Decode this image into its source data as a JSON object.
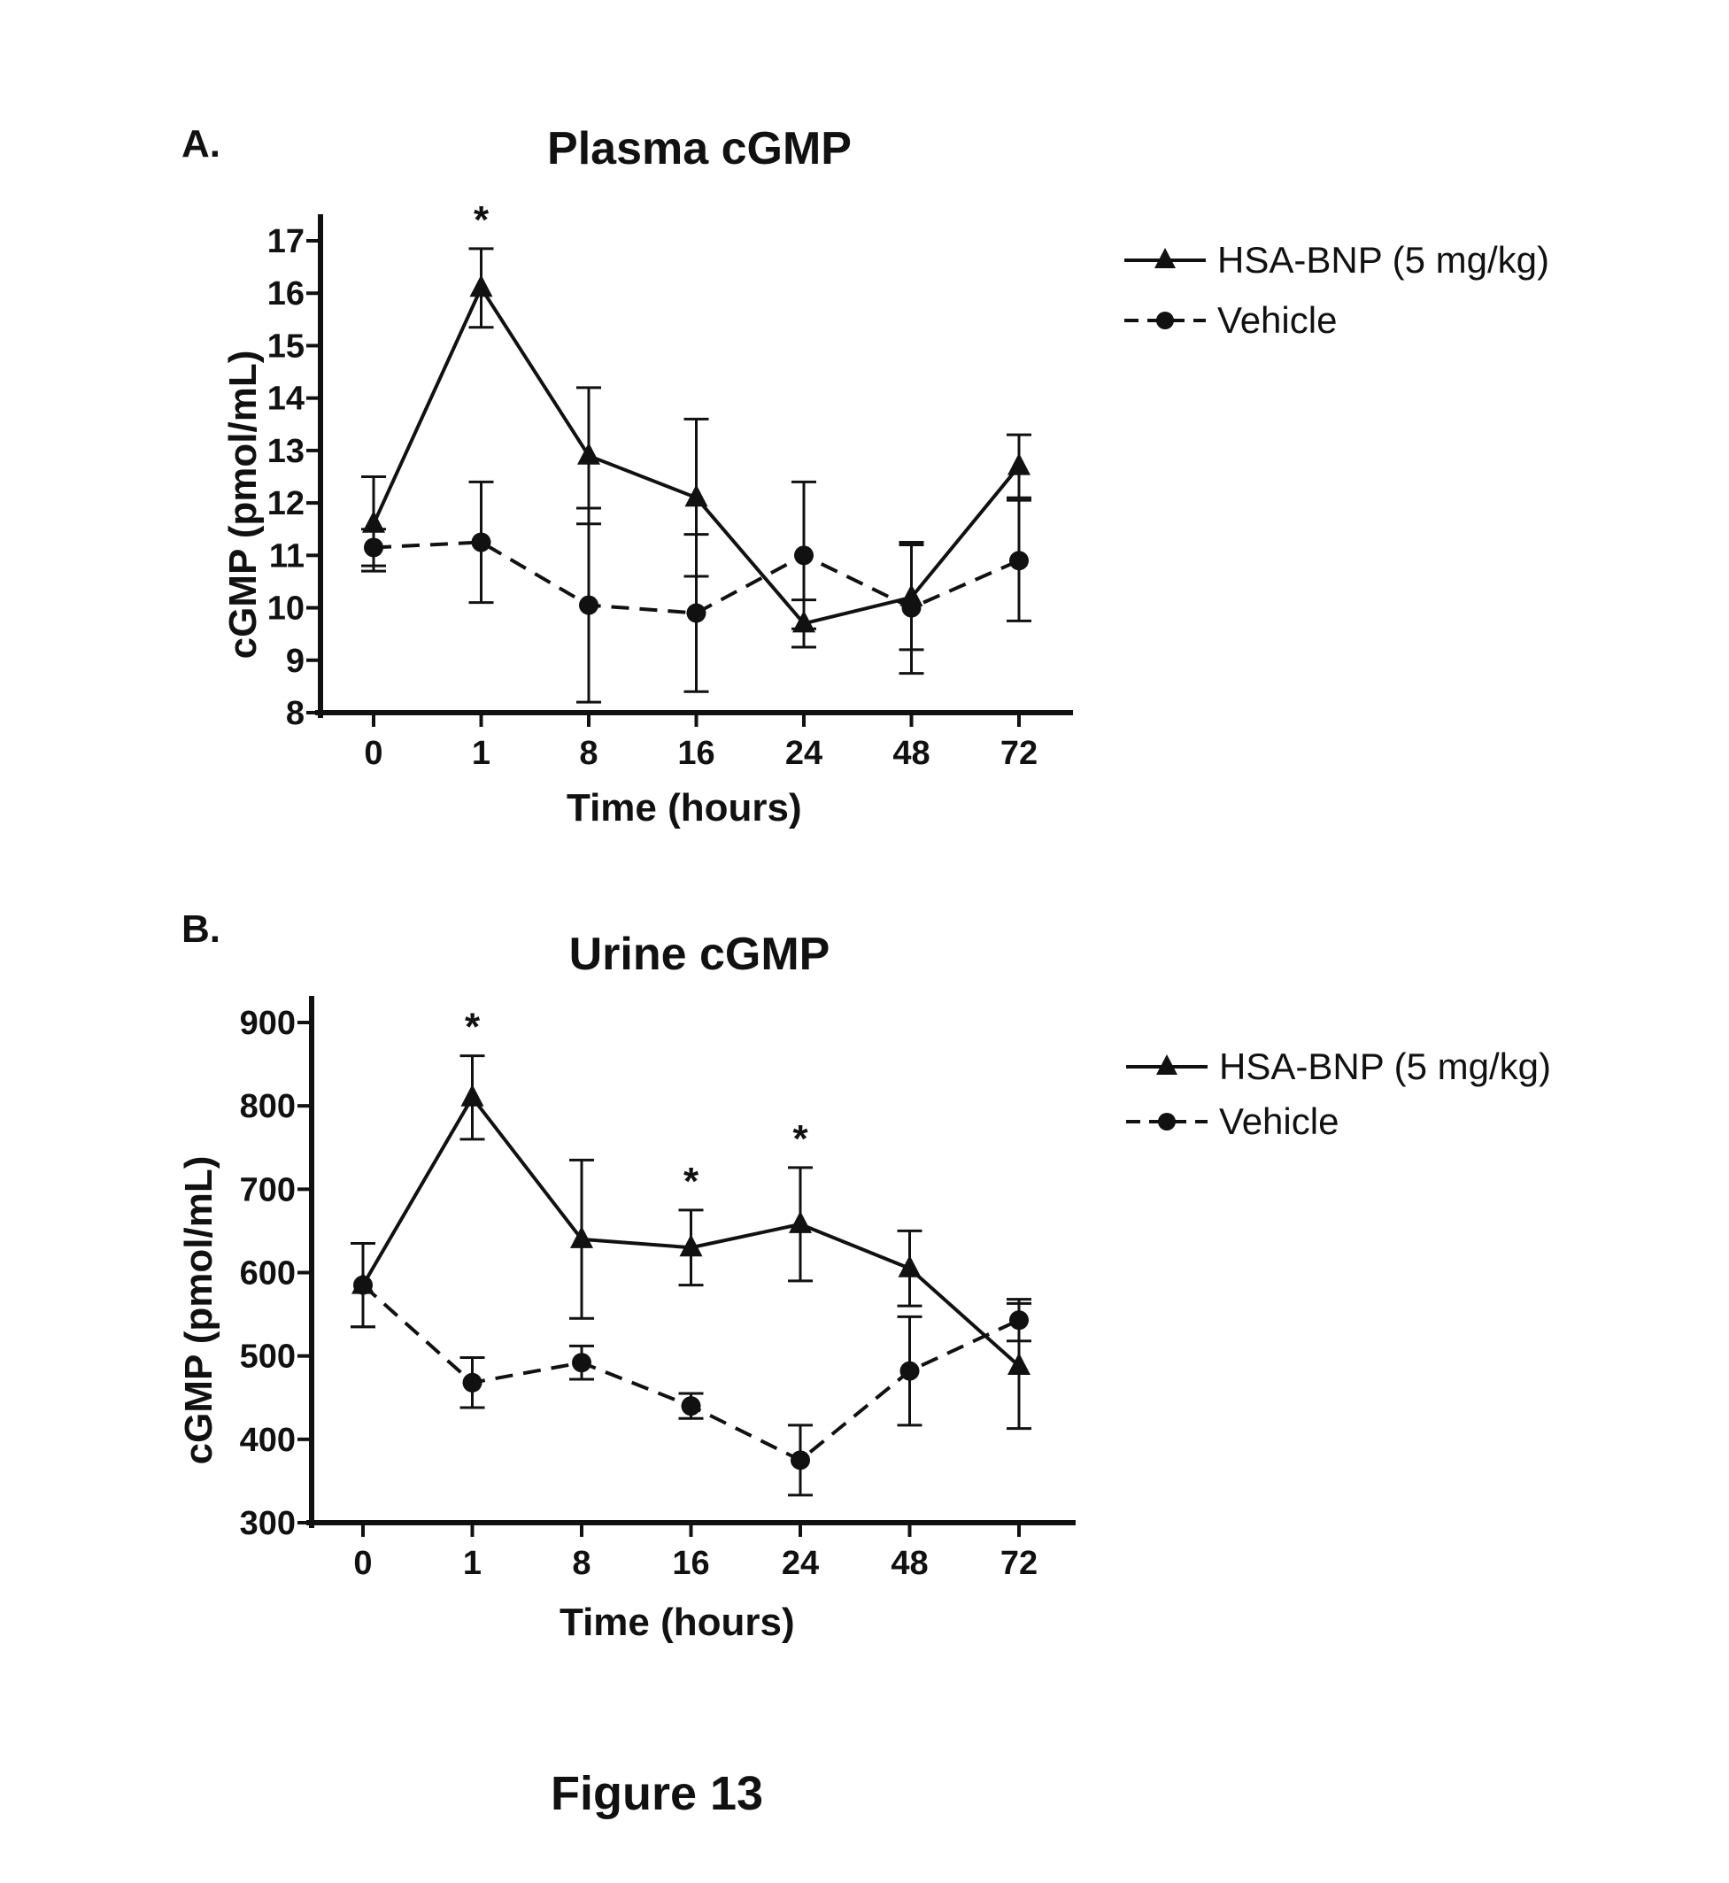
{
  "panel_a_label": "A.",
  "panel_b_label": "B.",
  "figure_caption": "Figure 13",
  "chart_data": [
    {
      "type": "line",
      "title": "Plasma cGMP",
      "xlabel": "Time (hours)",
      "ylabel": "cGMP (pmol/mL)",
      "categories": [
        "0",
        "1",
        "8",
        "16",
        "24",
        "48",
        "72"
      ],
      "ylim": [
        8,
        17
      ],
      "yticks": [
        8,
        9,
        10,
        11,
        12,
        13,
        14,
        15,
        16,
        17
      ],
      "series": [
        {
          "name": "HSA-BNP (5 mg/kg)",
          "marker": "triangle",
          "dash": "solid",
          "values": [
            11.6,
            16.1,
            12.9,
            12.1,
            9.7,
            10.2,
            12.7
          ],
          "errors": [
            0.9,
            0.75,
            1.3,
            1.5,
            0.45,
            1.0,
            0.6
          ]
        },
        {
          "name": "Vehicle",
          "marker": "circle",
          "dash": "dashed",
          "values": [
            11.15,
            11.25,
            10.05,
            9.9,
            11.0,
            10.0,
            10.9
          ],
          "errors": [
            0.35,
            1.15,
            1.85,
            1.5,
            1.4,
            1.25,
            1.15
          ]
        }
      ],
      "significance": [
        {
          "category": "1",
          "label": "*"
        }
      ],
      "legend": "top-right"
    },
    {
      "type": "line",
      "title": "Urine cGMP",
      "xlabel": "Time (hours)",
      "ylabel": "cGMP (pmol/mL)",
      "categories": [
        "0",
        "1",
        "8",
        "16",
        "24",
        "48",
        "72"
      ],
      "ylim": [
        300,
        900
      ],
      "yticks": [
        300,
        400,
        500,
        600,
        700,
        800,
        900
      ],
      "series": [
        {
          "name": "HSA-BNP (5 mg/kg)",
          "marker": "triangle",
          "dash": "solid",
          "values": [
            585,
            810,
            640,
            630,
            658,
            605,
            488
          ],
          "errors": [
            50,
            50,
            95,
            45,
            68,
            45,
            75
          ]
        },
        {
          "name": "Vehicle",
          "marker": "circle",
          "dash": "dashed",
          "values": [
            585,
            468,
            492,
            440,
            375,
            482,
            543
          ],
          "errors": [
            50,
            30,
            20,
            15,
            42,
            65,
            25
          ]
        }
      ],
      "significance": [
        {
          "category": "1",
          "label": "*"
        },
        {
          "category": "16",
          "label": "*"
        },
        {
          "category": "24",
          "label": "*"
        }
      ],
      "legend": "top-right"
    }
  ]
}
